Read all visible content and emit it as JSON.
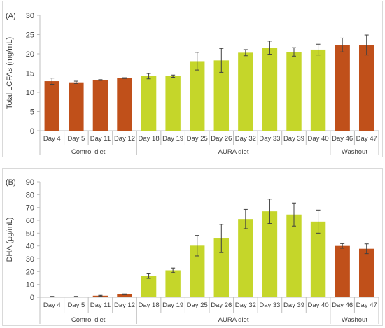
{
  "chart_data": [
    {
      "type": "bar",
      "panel_label": "(A)",
      "ylabel": "Total LCFAs (mg/mL)",
      "ylim": [
        0,
        30
      ],
      "yticks": [
        0,
        5,
        10,
        15,
        20,
        25,
        30
      ],
      "categories": [
        "Day 4",
        "Day 5",
        "Day 11",
        "Day 12",
        "Day 18",
        "Day 19",
        "Day 25",
        "Day 26",
        "Day 32",
        "Day 33",
        "Day 39",
        "Day 40",
        "Day 46",
        "Day 47"
      ],
      "values": [
        12.9,
        12.6,
        13.2,
        13.7,
        14.2,
        14.2,
        18.1,
        18.3,
        20.3,
        21.6,
        20.5,
        21.1,
        22.3,
        22.3
      ],
      "errors": [
        0.8,
        0.3,
        0.1,
        0.1,
        0.7,
        0.3,
        2.3,
        3.1,
        0.8,
        1.7,
        1.1,
        1.4,
        1.8,
        2.6
      ],
      "groups": [
        {
          "label": "Control diet",
          "start": 0,
          "end": 3,
          "color": "#c0501a"
        },
        {
          "label": "AURA diet",
          "start": 4,
          "end": 11,
          "color": "#c5d62a"
        },
        {
          "label": "Washout",
          "start": 12,
          "end": 13,
          "color": "#c0501a"
        }
      ],
      "grid": false
    },
    {
      "type": "bar",
      "panel_label": "(B)",
      "ylabel": "DHA (µg/mL)",
      "ylim": [
        0,
        90
      ],
      "yticks": [
        0,
        10,
        20,
        30,
        40,
        50,
        60,
        70,
        80,
        90
      ],
      "categories": [
        "Day 4",
        "Day 5",
        "Day 11",
        "Day 12",
        "Day 18",
        "Day 19",
        "Day 25",
        "Day 26",
        "Day 32",
        "Day 33",
        "Day 39",
        "Day 40",
        "Day 46",
        "Day 47"
      ],
      "values": [
        0.5,
        0.5,
        1.2,
        2.3,
        16.5,
        21.0,
        40.2,
        45.8,
        61.0,
        67.0,
        64.5,
        59.0,
        40.0,
        37.8
      ],
      "errors": [
        0.2,
        0.2,
        0.3,
        0.3,
        1.8,
        1.8,
        8.0,
        11.0,
        7.5,
        9.5,
        9.0,
        9.0,
        1.8,
        3.8
      ],
      "groups": [
        {
          "label": "Control diet",
          "start": 0,
          "end": 3,
          "color": "#c0501a"
        },
        {
          "label": "AURA diet",
          "start": 4,
          "end": 11,
          "color": "#c5d62a"
        },
        {
          "label": "Washout",
          "start": 12,
          "end": 13,
          "color": "#c0501a"
        }
      ],
      "grid": false
    }
  ]
}
